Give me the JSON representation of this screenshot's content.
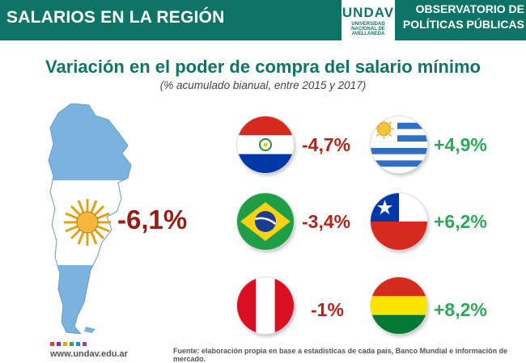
{
  "header": {
    "section_title": "SALARIOS EN LA REGIÓN",
    "logo_mark": "UNDAV",
    "logo_lines": [
      "UNIVERSIDAD",
      "NACIONAL DE",
      "AVELLANEDA"
    ],
    "observatorio_line1": "OBSERVATORIO DE",
    "observatorio_line2": "POLÍTICAS PÚBLICAS"
  },
  "title": "Variación en el poder de compra del salario mínimo",
  "subtitle": "(% acumulado bianual, entre 2015 y 2017)",
  "argentina": {
    "value": "-6,1%",
    "color": "#9a1a16"
  },
  "countries": [
    {
      "flag": "paraguay-flag-icon",
      "value": "-4,7%",
      "trend": "negative"
    },
    {
      "flag": "uruguay-flag-icon",
      "value": "+4,9%",
      "trend": "positive"
    },
    {
      "flag": "brazil-flag-icon",
      "value": "-3,4%",
      "trend": "negative"
    },
    {
      "flag": "chile-flag-icon",
      "value": "+6,2%",
      "trend": "positive"
    },
    {
      "flag": "peru-flag-icon",
      "value": "-1%",
      "trend": "negative"
    },
    {
      "flag": "bolivia-flag-icon",
      "value": "+8,2%",
      "trend": "positive"
    }
  ],
  "colors": {
    "brand": "#0f7466",
    "negative": "#b3241d",
    "positive": "#2fa85a"
  },
  "footer": {
    "url": "www.undav.edu.ar",
    "source": "Fuente: elaboración propia en base a estadísticas de cada país, Banco Mundial e información de mercado."
  }
}
